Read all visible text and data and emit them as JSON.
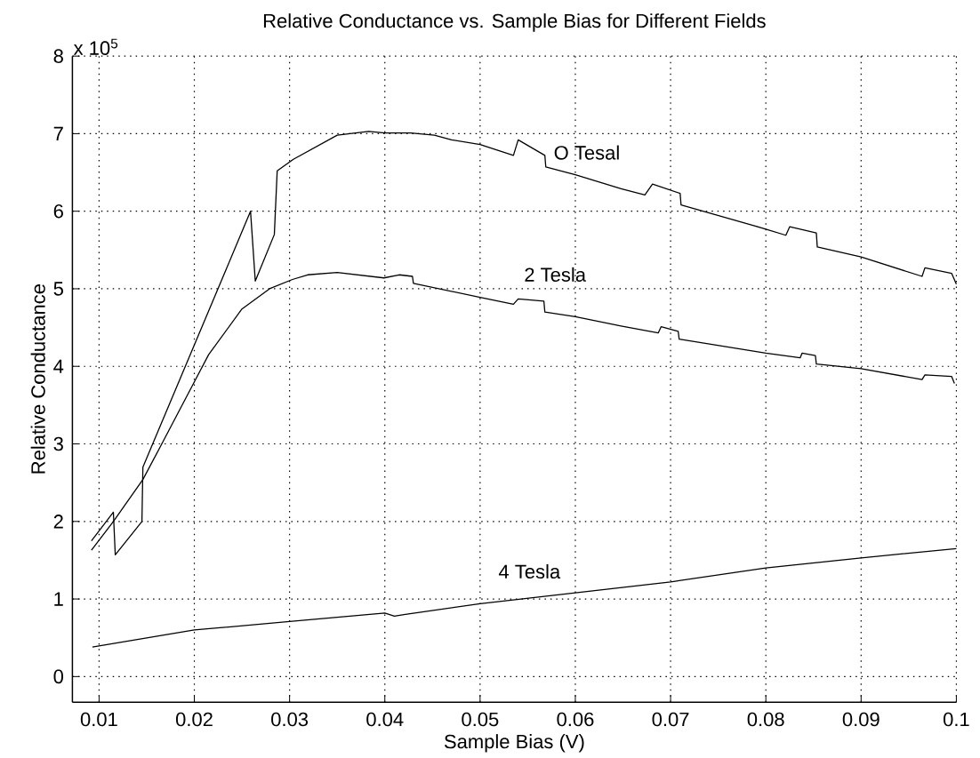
{
  "chart_data": {
    "type": "line",
    "title": "Relative Conductance vs. Sample Bias for Different Fields",
    "xlabel": "Sample Bias (V)",
    "ylabel": "Relative Conductance",
    "xlim": [
      0.0072,
      0.1
    ],
    "ylim": [
      -0.33,
      8
    ],
    "xticks": [
      0.01,
      0.02,
      0.03,
      0.04,
      0.05,
      0.06,
      0.07,
      0.08,
      0.09,
      0.1
    ],
    "yticks": [
      0,
      1,
      2,
      3,
      4,
      5,
      6,
      7,
      8
    ],
    "grid": true,
    "marker": "none",
    "line_style": "solid",
    "series": [
      {
        "name": "O Tesal",
        "color": "#000000",
        "x": [
          0.0092,
          0.0115,
          0.0117,
          0.0145,
          0.0146,
          0.0231,
          0.0259,
          0.0264,
          0.0284,
          0.0287,
          0.0304,
          0.035,
          0.0383,
          0.04,
          0.0427,
          0.0452,
          0.047,
          0.05,
          0.0535,
          0.054,
          0.0568,
          0.0569,
          0.06,
          0.0648,
          0.0673,
          0.0681,
          0.071,
          0.0711,
          0.08,
          0.0821,
          0.0825,
          0.0853,
          0.0854,
          0.09,
          0.0964,
          0.0967,
          0.0995,
          0.1
        ],
        "values": [
          1.75,
          2.12,
          1.57,
          2.0,
          2.7,
          5.18,
          6.0,
          5.1,
          5.7,
          6.52,
          6.67,
          6.98,
          7.03,
          7.01,
          7.01,
          6.98,
          6.92,
          6.86,
          6.72,
          6.92,
          6.72,
          6.57,
          6.47,
          6.29,
          6.21,
          6.35,
          6.23,
          6.08,
          5.77,
          5.69,
          5.8,
          5.72,
          5.54,
          5.41,
          5.16,
          5.27,
          5.2,
          5.06
        ]
      },
      {
        "name": "2 Tesla",
        "color": "#000000",
        "x": [
          0.0092,
          0.0115,
          0.0146,
          0.0165,
          0.02,
          0.0215,
          0.025,
          0.0279,
          0.0303,
          0.0319,
          0.035,
          0.0399,
          0.0415,
          0.0429,
          0.043,
          0.05,
          0.0535,
          0.054,
          0.0567,
          0.0568,
          0.06,
          0.0648,
          0.0687,
          0.069,
          0.0708,
          0.0709,
          0.08,
          0.0836,
          0.0838,
          0.0852,
          0.0853,
          0.09,
          0.0964,
          0.0967,
          0.0995,
          0.0998
        ],
        "values": [
          1.63,
          2.0,
          2.54,
          2.98,
          3.8,
          4.15,
          4.74,
          5.0,
          5.12,
          5.18,
          5.21,
          5.14,
          5.18,
          5.16,
          5.07,
          4.89,
          4.8,
          4.87,
          4.84,
          4.7,
          4.64,
          4.52,
          4.43,
          4.51,
          4.45,
          4.35,
          4.17,
          4.11,
          4.17,
          4.14,
          4.03,
          3.97,
          3.83,
          3.89,
          3.87,
          3.78
        ]
      },
      {
        "name": "4 Tesla",
        "color": "#000000",
        "x": [
          0.0093,
          0.02,
          0.03,
          0.04,
          0.041,
          0.042,
          0.05,
          0.06,
          0.07,
          0.08,
          0.09,
          0.1
        ],
        "values": [
          0.38,
          0.6,
          0.71,
          0.82,
          0.78,
          0.8,
          0.94,
          1.08,
          1.22,
          1.4,
          1.53,
          1.65
        ]
      }
    ],
    "annotations": [
      "x 10$^{5}$"
    ]
  }
}
